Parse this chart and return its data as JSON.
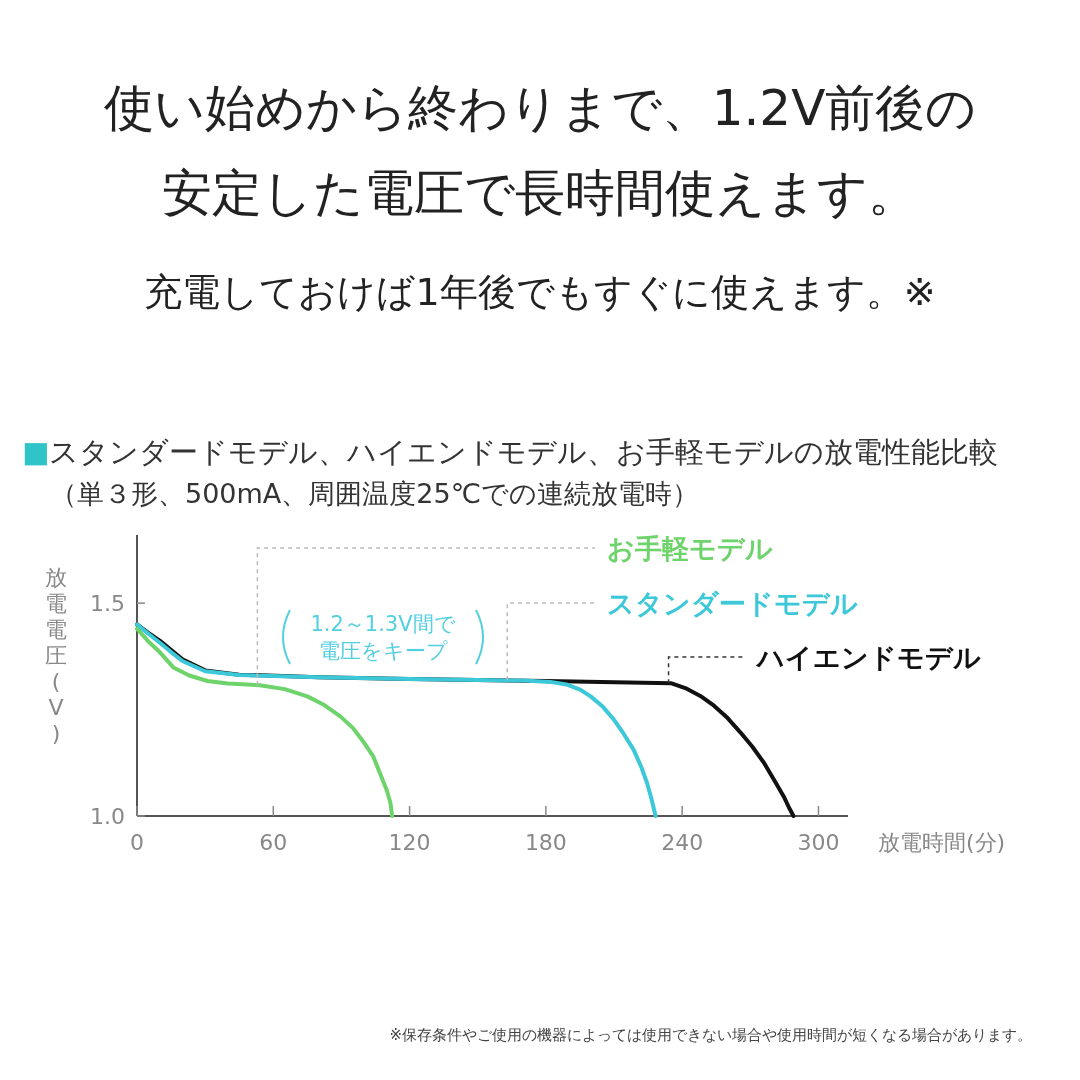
{
  "chart_data": {
    "type": "line",
    "title": "使い始めから終わりまで、1.2V前後の安定した電圧で長時間使えます。",
    "subtitle": "充電しておけば1年後でもすぐに使えます。※",
    "xlabel": "放電時間(分)",
    "ylabel": "放電電圧(V)",
    "xlim": [
      0,
      313
    ],
    "ylim": [
      1.0,
      1.66
    ],
    "xticks": [
      0,
      60,
      120,
      180,
      240,
      300
    ],
    "yticks": [
      {
        "value": 1.0,
        "label": "1.0"
      },
      1.5
    ],
    "grid": false,
    "marker": "none",
    "line_style": "solid",
    "series": [
      {
        "color": "#6dd36a",
        "x": [
          0,
          5,
          10,
          16,
          23,
          31,
          40,
          54,
          65,
          75,
          82,
          89.5,
          95,
          100,
          104,
          107,
          110,
          111.6,
          112.3
        ],
        "values": [
          1.44,
          1.41,
          1.385,
          1.349,
          1.33,
          1.317,
          1.311,
          1.307,
          1.298,
          1.281,
          1.262,
          1.234,
          1.207,
          1.172,
          1.14,
          1.1,
          1.06,
          1.03,
          1.0
        ]
      },
      {
        "color": "#3cc8d8",
        "x": [
          0,
          5,
          9.8,
          15,
          20,
          30,
          45,
          80,
          120,
          170,
          182,
          189,
          195,
          199.7,
          205,
          210,
          214,
          218.6,
          222,
          224.5,
          226.5,
          228.3
        ],
        "values": [
          1.45,
          1.428,
          1.408,
          1.385,
          1.364,
          1.34,
          1.331,
          1.326,
          1.322,
          1.318,
          1.315,
          1.309,
          1.297,
          1.281,
          1.257,
          1.226,
          1.195,
          1.156,
          1.115,
          1.078,
          1.04,
          1.0
        ]
      },
      {
        "color": "#111111",
        "x": [
          0,
          5,
          10,
          20,
          30,
          45,
          80,
          120,
          180,
          235,
          242,
          248,
          254,
          260,
          265.7,
          271,
          276,
          281,
          284.7,
          287,
          289
        ],
        "values": [
          1.45,
          1.43,
          1.412,
          1.368,
          1.342,
          1.332,
          1.326,
          1.322,
          1.317,
          1.312,
          1.299,
          1.282,
          1.259,
          1.23,
          1.196,
          1.162,
          1.125,
          1.08,
          1.046,
          1.02,
          1.0
        ]
      }
    ],
    "annotations": [
      {
        "text": "お手軽モデル",
        "x": 53,
        "y": 1.307
      },
      {
        "text": "スタンダードモデル",
        "x": 163,
        "y": 1.319
      },
      {
        "text": "ハイエンドモデル",
        "x": 234,
        "y": 1.312
      },
      "1.2～1.3V間で電圧をキープ",
      "■スタンダードモデル、ハイエンドモデル、お手軽モデルの放電性能比較",
      "（単３形、500mA、周囲温度25℃での連続放電時）",
      "※保存条件やご使用の機器によっては使用できない場合や使用時間が短くなる場合があります。"
    ]
  }
}
